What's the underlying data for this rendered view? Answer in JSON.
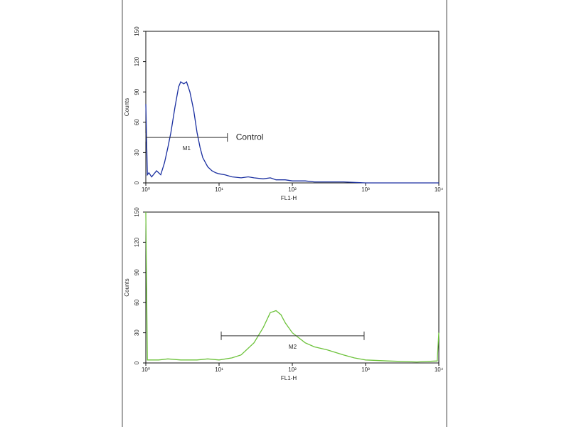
{
  "chart_data": [
    {
      "type": "line",
      "color": "#1a2fa0",
      "log_x": true,
      "xlabel": "FL1-H",
      "ylabel": "Counts",
      "x": [
        1,
        1.05,
        1.1,
        1.2,
        1.4,
        1.6,
        1.8,
        2,
        2.2,
        2.5,
        2.8,
        3,
        3.3,
        3.6,
        4,
        4.5,
        5,
        5.5,
        6,
        7,
        8,
        9,
        10,
        12,
        15,
        20,
        25,
        30,
        40,
        50,
        60,
        80,
        100,
        150,
        200,
        300,
        500,
        1000,
        2000,
        5000,
        10000
      ],
      "values": [
        78,
        8,
        10,
        6,
        12,
        8,
        20,
        35,
        50,
        75,
        95,
        100,
        98,
        100,
        90,
        72,
        50,
        35,
        25,
        16,
        12,
        10,
        9,
        8,
        6,
        5,
        6,
        5,
        4,
        5,
        3,
        3,
        2,
        2,
        1,
        1,
        1,
        0,
        0,
        0,
        0
      ],
      "xlim": [
        1,
        10000
      ],
      "ylim": [
        0,
        150
      ],
      "xticks": [
        {
          "value": 1,
          "label": "10⁰"
        },
        {
          "value": 10,
          "label": "10¹"
        },
        {
          "value": 100,
          "label": "10²"
        },
        {
          "value": 1000,
          "label": "10³"
        },
        {
          "value": 10000,
          "label": "10⁴"
        }
      ],
      "yticks": [
        0,
        30,
        60,
        90,
        120,
        150
      ],
      "gates": [
        {
          "label": "M1",
          "x": [
            1,
            13
          ],
          "y": 45
        }
      ],
      "annotation": "Control"
    },
    {
      "type": "line",
      "color": "#6cc23a",
      "log_x": true,
      "xlabel": "FL1-H",
      "ylabel": "Counts",
      "x": [
        1,
        1.05,
        1.5,
        2,
        3,
        5,
        7,
        10,
        15,
        20,
        30,
        40,
        50,
        60,
        70,
        80,
        100,
        150,
        200,
        300,
        500,
        700,
        1000,
        2000,
        5000,
        9500,
        10000
      ],
      "values": [
        150,
        3,
        3,
        4,
        3,
        3,
        4,
        3,
        5,
        8,
        20,
        35,
        50,
        52,
        48,
        40,
        30,
        20,
        16,
        13,
        8,
        5,
        3,
        2,
        1,
        2,
        30
      ],
      "xlim": [
        1,
        10000
      ],
      "ylim": [
        0,
        150
      ],
      "xticks": [
        {
          "value": 1,
          "label": "10⁰"
        },
        {
          "value": 10,
          "label": "10¹"
        },
        {
          "value": 100,
          "label": "10²"
        },
        {
          "value": 1000,
          "label": "10³"
        },
        {
          "value": 10000,
          "label": "10⁴"
        }
      ],
      "yticks": [
        0,
        30,
        60,
        90,
        120,
        150
      ],
      "gates": [
        {
          "label": "M2",
          "x": [
            10.7,
            955
          ],
          "y": 27
        }
      ]
    }
  ]
}
